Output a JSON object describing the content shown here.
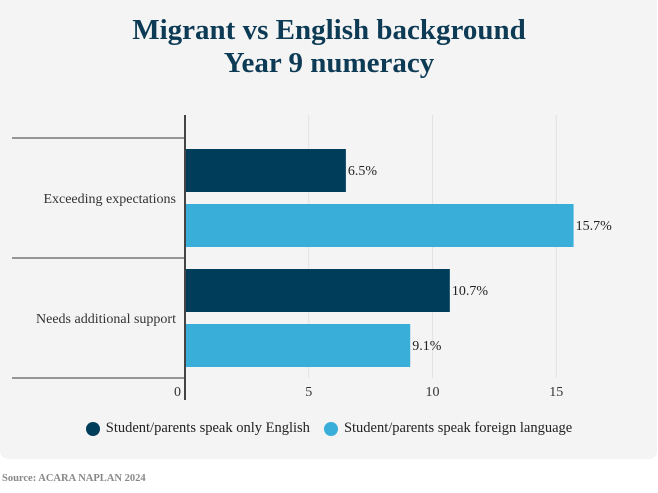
{
  "chart_data": {
    "type": "bar",
    "orientation": "horizontal",
    "title": "Migrant vs English background",
    "subtitle": "Year 9 numeracy",
    "categories": [
      "Exceeding expectations",
      "Needs additional support"
    ],
    "series": [
      {
        "name": "Student/parents speak only English",
        "values": [
          6.5,
          10.7
        ],
        "labels": [
          "6.5%",
          "10.7%"
        ],
        "color": "#003d5b"
      },
      {
        "name": "Student/parents speak foreign language",
        "values": [
          15.7,
          9.1
        ],
        "labels": [
          "15.7%",
          "9.1%"
        ],
        "color": "#38aed8"
      }
    ],
    "xticks": [
      0,
      5,
      10,
      15
    ],
    "xlim": [
      0,
      19
    ],
    "grid": true,
    "legend": "bottom"
  },
  "source": "Source: ACARA NAPLAN 2024"
}
